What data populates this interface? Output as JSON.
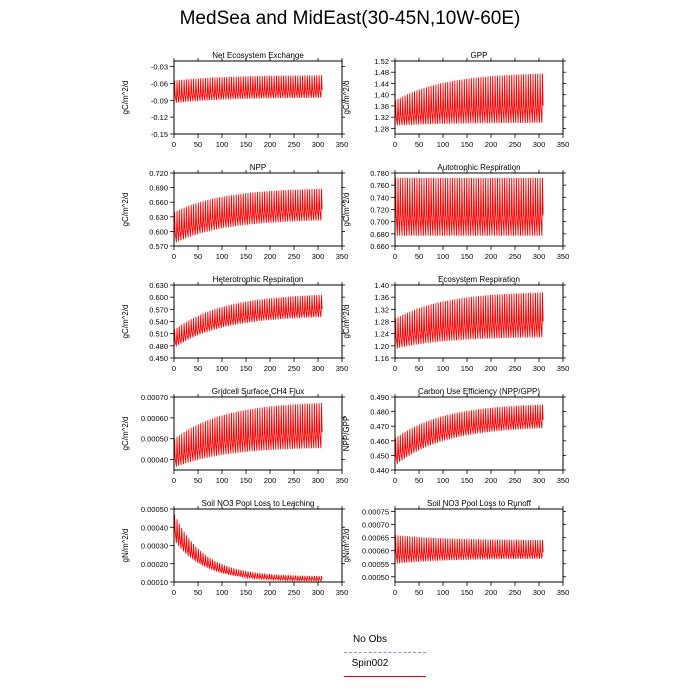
{
  "title": "MedSea and MidEast(30-45N,10W-60E)",
  "legend": [
    {
      "label": "No Obs",
      "color": "#8c8cf0",
      "dashed": true
    },
    {
      "label": "Spin002",
      "color": "#ff0000",
      "dashed": false
    }
  ],
  "chart_data": [
    {
      "type": "line",
      "title": "Net Ecosystem Exchange",
      "ylabel": "gC/m^2/d",
      "xlim": [
        0,
        350
      ],
      "ylim": [
        -0.15,
        -0.02
      ],
      "xticks": [
        "0",
        "50",
        "100",
        "150",
        "200",
        "250",
        "300",
        "350"
      ],
      "yticks": [
        "-0.15",
        "-0.12",
        "-0.09",
        "-0.06",
        "-0.03"
      ],
      "x": [
        0,
        306
      ],
      "upper": [
        -0.055,
        -0.045
      ],
      "lower": [
        -0.095,
        -0.085
      ],
      "series": [
        {
          "name": "Spin002",
          "color": "#ff0000"
        }
      ]
    },
    {
      "type": "line",
      "title": "GPP",
      "ylabel": "gC/m^2/d",
      "xlim": [
        0,
        350
      ],
      "ylim": [
        1.26,
        1.52
      ],
      "xticks": [
        "0",
        "50",
        "100",
        "150",
        "200",
        "250",
        "300",
        "350"
      ],
      "yticks": [
        "1.28",
        "1.32",
        "1.36",
        "1.40",
        "1.44",
        "1.48",
        "1.52"
      ],
      "x": [
        0,
        306
      ],
      "upper": [
        1.38,
        1.48
      ],
      "lower": [
        1.29,
        1.3
      ],
      "series": [
        {
          "name": "Spin002",
          "color": "#ff0000"
        }
      ]
    },
    {
      "type": "line",
      "title": "NPP",
      "ylabel": "gC/m^2/d",
      "xlim": [
        0,
        350
      ],
      "ylim": [
        0.57,
        0.72
      ],
      "xticks": [
        "0",
        "50",
        "100",
        "150",
        "200",
        "250",
        "300",
        "350"
      ],
      "yticks": [
        "0.570",
        "0.600",
        "0.630",
        "0.660",
        "0.690",
        "0.720"
      ],
      "x": [
        0,
        306
      ],
      "upper": [
        0.64,
        0.69
      ],
      "lower": [
        0.575,
        0.625
      ],
      "series": [
        {
          "name": "Spin002",
          "color": "#ff0000"
        }
      ]
    },
    {
      "type": "line",
      "title": "Autotrophic Respiration",
      "ylabel": "gC/m^2/d",
      "xlim": [
        0,
        350
      ],
      "ylim": [
        0.66,
        0.78
      ],
      "xticks": [
        "0",
        "50",
        "100",
        "150",
        "200",
        "250",
        "300",
        "350"
      ],
      "yticks": [
        "0.660",
        "0.680",
        "0.700",
        "0.720",
        "0.740",
        "0.760",
        "0.780"
      ],
      "x": [
        0,
        306
      ],
      "upper": [
        0.772,
        0.772
      ],
      "lower": [
        0.677,
        0.677
      ],
      "series": [
        {
          "name": "Spin002",
          "color": "#ff0000"
        }
      ]
    },
    {
      "type": "line",
      "title": "Heterotrophic Respiration",
      "ylabel": "gC/m^2/d",
      "xlim": [
        0,
        350
      ],
      "ylim": [
        0.45,
        0.63
      ],
      "xticks": [
        "0",
        "50",
        "100",
        "150",
        "200",
        "250",
        "300",
        "350"
      ],
      "yticks": [
        "0.450",
        "0.480",
        "0.510",
        "0.540",
        "0.570",
        "0.600",
        "0.630"
      ],
      "x": [
        0,
        306
      ],
      "upper": [
        0.52,
        0.61
      ],
      "lower": [
        0.475,
        0.555
      ],
      "series": [
        {
          "name": "Spin002",
          "color": "#ff0000"
        }
      ]
    },
    {
      "type": "line",
      "title": "Ecosystem Respiration",
      "ylabel": "gC/m^2/d",
      "xlim": [
        0,
        350
      ],
      "ylim": [
        1.16,
        1.4
      ],
      "xticks": [
        "0",
        "50",
        "100",
        "150",
        "200",
        "250",
        "300",
        "350"
      ],
      "yticks": [
        "1.16",
        "1.20",
        "1.24",
        "1.28",
        "1.32",
        "1.36",
        "1.40"
      ],
      "x": [
        0,
        306
      ],
      "upper": [
        1.29,
        1.38
      ],
      "lower": [
        1.19,
        1.23
      ],
      "series": [
        {
          "name": "Spin002",
          "color": "#ff0000"
        }
      ]
    },
    {
      "type": "line",
      "title": "Gridcell Surface CH4 Flux",
      "ylabel": "gC/m^2/d",
      "xlim": [
        0,
        350
      ],
      "ylim": [
        0.00035,
        0.0007
      ],
      "xticks": [
        "0",
        "50",
        "100",
        "150",
        "200",
        "250",
        "300",
        "350"
      ],
      "yticks": [
        "0.00040",
        "0.00050",
        "0.00060",
        "0.00070"
      ],
      "x": [
        0,
        306
      ],
      "upper": [
        0.0005,
        0.00068
      ],
      "lower": [
        0.00036,
        0.00046
      ],
      "series": [
        {
          "name": "Spin002",
          "color": "#ff0000"
        }
      ]
    },
    {
      "type": "line",
      "title": "Carbon Use Efficiency (NPP/GPP)",
      "ylabel": "NPP/GPP",
      "xlim": [
        0,
        350
      ],
      "ylim": [
        0.44,
        0.49
      ],
      "xticks": [
        "0",
        "50",
        "100",
        "150",
        "200",
        "250",
        "300",
        "350"
      ],
      "yticks": [
        "0.440",
        "0.450",
        "0.460",
        "0.470",
        "0.480",
        "0.490"
      ],
      "x": [
        0,
        306
      ],
      "upper": [
        0.462,
        0.486
      ],
      "lower": [
        0.443,
        0.47
      ],
      "series": [
        {
          "name": "Spin002",
          "color": "#ff0000"
        }
      ]
    },
    {
      "type": "line",
      "title": "Soil NO3 Pool Loss to Leaching",
      "ylabel": "gN/m^2/d",
      "xlim": [
        0,
        350
      ],
      "ylim": [
        0.0001,
        0.0005
      ],
      "xticks": [
        "0",
        "50",
        "100",
        "150",
        "200",
        "250",
        "300",
        "350"
      ],
      "yticks": [
        "0.00010",
        "0.00020",
        "0.00030",
        "0.00040",
        "0.00050"
      ],
      "x": [
        0,
        306
      ],
      "upper": [
        0.00047,
        0.00013
      ],
      "lower": [
        0.00033,
        0.000105
      ],
      "series": [
        {
          "name": "Spin002",
          "color": "#ff0000"
        }
      ]
    },
    {
      "type": "line",
      "title": "Soil NO3 Pool Loss to Runoff",
      "ylabel": "gN/m^2/d",
      "xlim": [
        0,
        350
      ],
      "ylim": [
        0.00048,
        0.00076
      ],
      "xticks": [
        "0",
        "50",
        "100",
        "150",
        "200",
        "250",
        "300",
        "350"
      ],
      "yticks": [
        "0.00050",
        "0.00055",
        "0.00060",
        "0.00065",
        "0.00070",
        "0.00075"
      ],
      "x": [
        0,
        306
      ],
      "upper": [
        0.00066,
        0.00064
      ],
      "lower": [
        0.00055,
        0.00057
      ],
      "series": [
        {
          "name": "Spin002",
          "color": "#ff0000"
        }
      ]
    }
  ]
}
